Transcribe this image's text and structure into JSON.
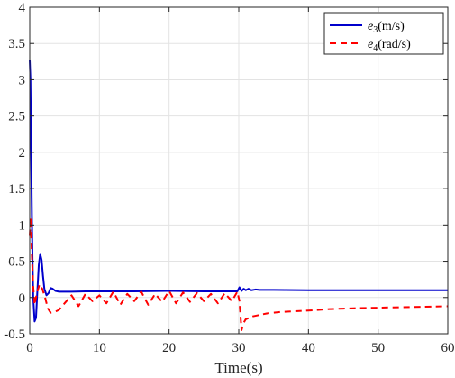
{
  "chart_data": {
    "type": "line",
    "xlabel": "Time(s)",
    "ylabel": "",
    "xlim": [
      0,
      60
    ],
    "ylim": [
      -0.5,
      4
    ],
    "grid": true,
    "legend_position": "top-right",
    "x_ticks": [
      0,
      10,
      20,
      30,
      40,
      50,
      60
    ],
    "x_tick_labels": [
      "0",
      "10",
      "20",
      "30",
      "40",
      "50",
      "60"
    ],
    "y_ticks": [
      -0.5,
      0,
      0.5,
      1,
      1.5,
      2,
      2.5,
      3,
      3.5,
      4
    ],
    "y_tick_labels": [
      "-0.5",
      "0",
      "0.5",
      "1",
      "1.5",
      "2",
      "2.5",
      "3",
      "3.5",
      "4"
    ],
    "series": [
      {
        "name_base": "e",
        "name_sub": "3",
        "name_unit": "(m/s)",
        "color": "#0000cc",
        "style": "solid",
        "x": [
          0,
          0.1,
          0.2,
          0.35,
          0.5,
          0.7,
          0.9,
          1.1,
          1.3,
          1.5,
          1.7,
          1.9,
          2.1,
          2.4,
          2.7,
          3.0,
          3.3,
          3.7,
          4.2,
          5,
          6,
          8,
          10,
          15,
          20,
          25,
          29.8,
          30.1,
          30.4,
          30.7,
          31.0,
          31.4,
          31.8,
          32.4,
          33,
          35,
          40,
          45,
          50,
          55,
          60
        ],
        "y": [
          3.27,
          3.0,
          2.0,
          0.8,
          0.0,
          -0.33,
          -0.28,
          0.1,
          0.45,
          0.6,
          0.52,
          0.3,
          0.12,
          0.03,
          0.06,
          0.13,
          0.12,
          0.09,
          0.08,
          0.08,
          0.08,
          0.085,
          0.085,
          0.085,
          0.09,
          0.085,
          0.085,
          0.14,
          0.09,
          0.12,
          0.1,
          0.12,
          0.1,
          0.11,
          0.105,
          0.105,
          0.1,
          0.1,
          0.1,
          0.1,
          0.1
        ]
      },
      {
        "name_base": "e",
        "name_sub": "4",
        "name_unit": "(rad/s)",
        "color": "#ff0000",
        "style": "dashed",
        "x": [
          0,
          0.15,
          0.3,
          0.5,
          0.7,
          1.0,
          1.4,
          1.8,
          2.2,
          2.6,
          3.0,
          3.6,
          4.2,
          5,
          6,
          7,
          8,
          9,
          10,
          11,
          12,
          13,
          14,
          15,
          16,
          17,
          18,
          19,
          20,
          21,
          22,
          23,
          24,
          25,
          26,
          27,
          28,
          29,
          29.8,
          30.1,
          30.4,
          30.7,
          31.0,
          31.5,
          32,
          33,
          34,
          36,
          38,
          40,
          43,
          46,
          50,
          55,
          60
        ],
        "y": [
          0.85,
          1.1,
          0.6,
          0.15,
          -0.1,
          0.05,
          0.18,
          0.12,
          0.0,
          -0.15,
          -0.21,
          -0.2,
          -0.17,
          -0.08,
          0.03,
          -0.12,
          0.05,
          -0.05,
          0.03,
          -0.08,
          0.08,
          -0.1,
          0.05,
          -0.05,
          0.08,
          -0.1,
          0.05,
          -0.06,
          0.09,
          -0.08,
          0.07,
          -0.06,
          0.06,
          -0.05,
          0.05,
          -0.08,
          0.06,
          -0.05,
          0.08,
          -0.05,
          -0.45,
          -0.35,
          -0.3,
          -0.28,
          -0.26,
          -0.24,
          -0.22,
          -0.2,
          -0.19,
          -0.18,
          -0.16,
          -0.15,
          -0.14,
          -0.13,
          -0.12
        ]
      }
    ]
  }
}
